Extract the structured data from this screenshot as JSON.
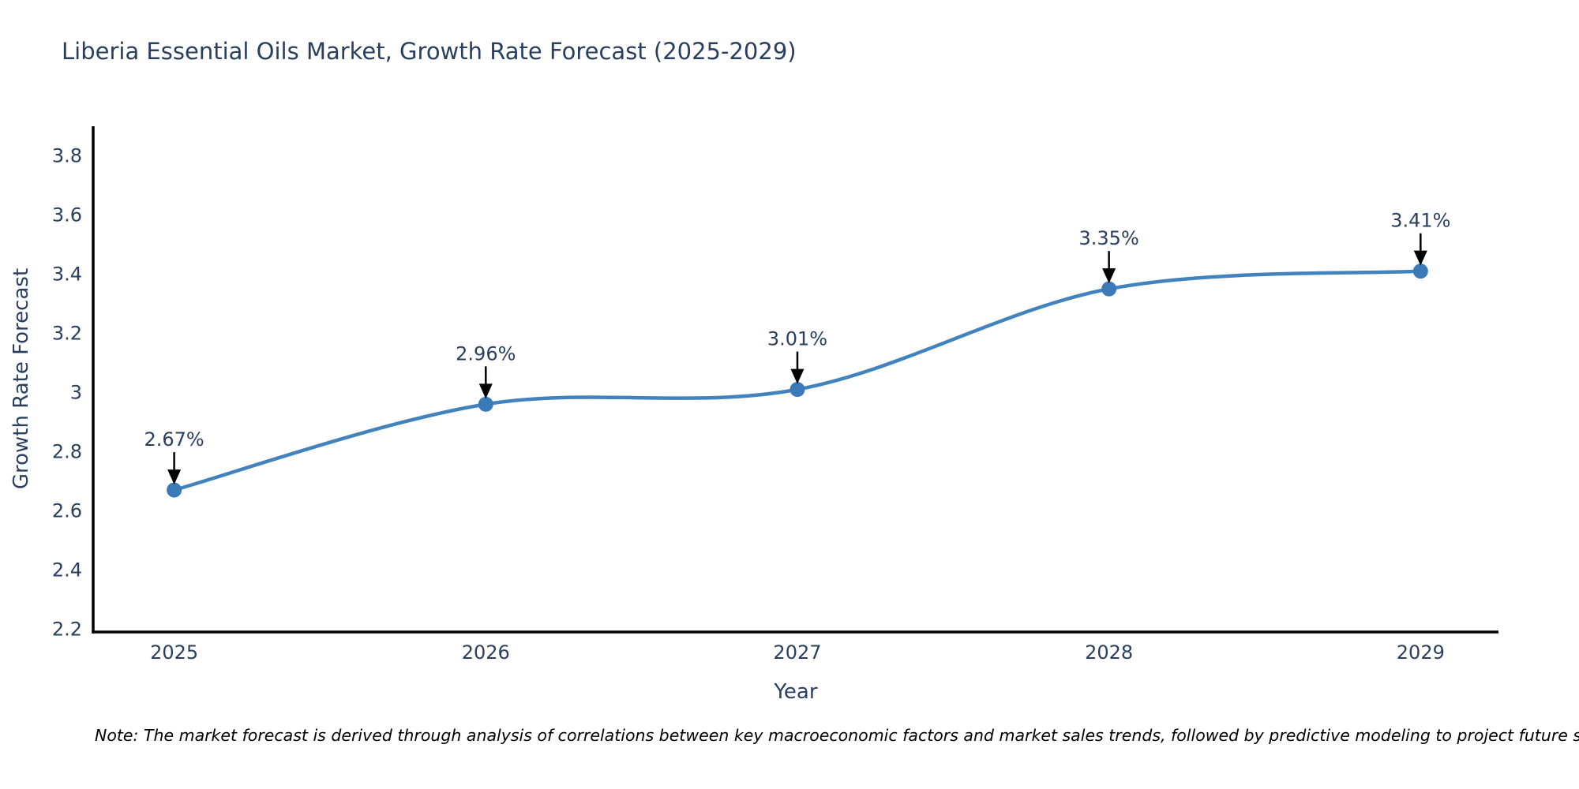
{
  "note": "Note: The market forecast is derived through analysis of correlations between key macroeconomic factors and market sales trends, followed by predictive modeling to project future sales",
  "chart_data": {
    "type": "line",
    "line_shape": "spline",
    "title": "Liberia Essential Oils Market, Growth Rate Forecast (2025-2029)",
    "xlabel": "Year",
    "ylabel": "Growth Rate Forecast",
    "x": [
      2025,
      2026,
      2027,
      2028,
      2029
    ],
    "x_tick_labels": [
      "2025",
      "2026",
      "2027",
      "2028",
      "2029"
    ],
    "values": [
      2.67,
      2.96,
      3.01,
      3.35,
      3.41
    ],
    "point_labels": [
      "2.67%",
      "2.96%",
      "3.01%",
      "3.35%",
      "3.41%"
    ],
    "y_ticks": [
      2.2,
      2.4,
      2.6,
      2.8,
      3,
      3.2,
      3.4,
      3.6,
      3.8
    ],
    "y_tick_labels": [
      "2.2",
      "2.4",
      "2.6",
      "2.8",
      "3",
      "3.2",
      "3.4",
      "3.6",
      "3.8"
    ],
    "xlim": [
      2024.74,
      2029.25
    ],
    "ylim": [
      2.19,
      3.9
    ],
    "grid": false,
    "legend": "none",
    "colors": {
      "line": "#4383bd",
      "marker": "#3a7ab9",
      "text": "#2a3f5f",
      "axis": "#000000",
      "annotation_text": "#2a3f5f",
      "annotation_arrow": "#000000"
    }
  }
}
